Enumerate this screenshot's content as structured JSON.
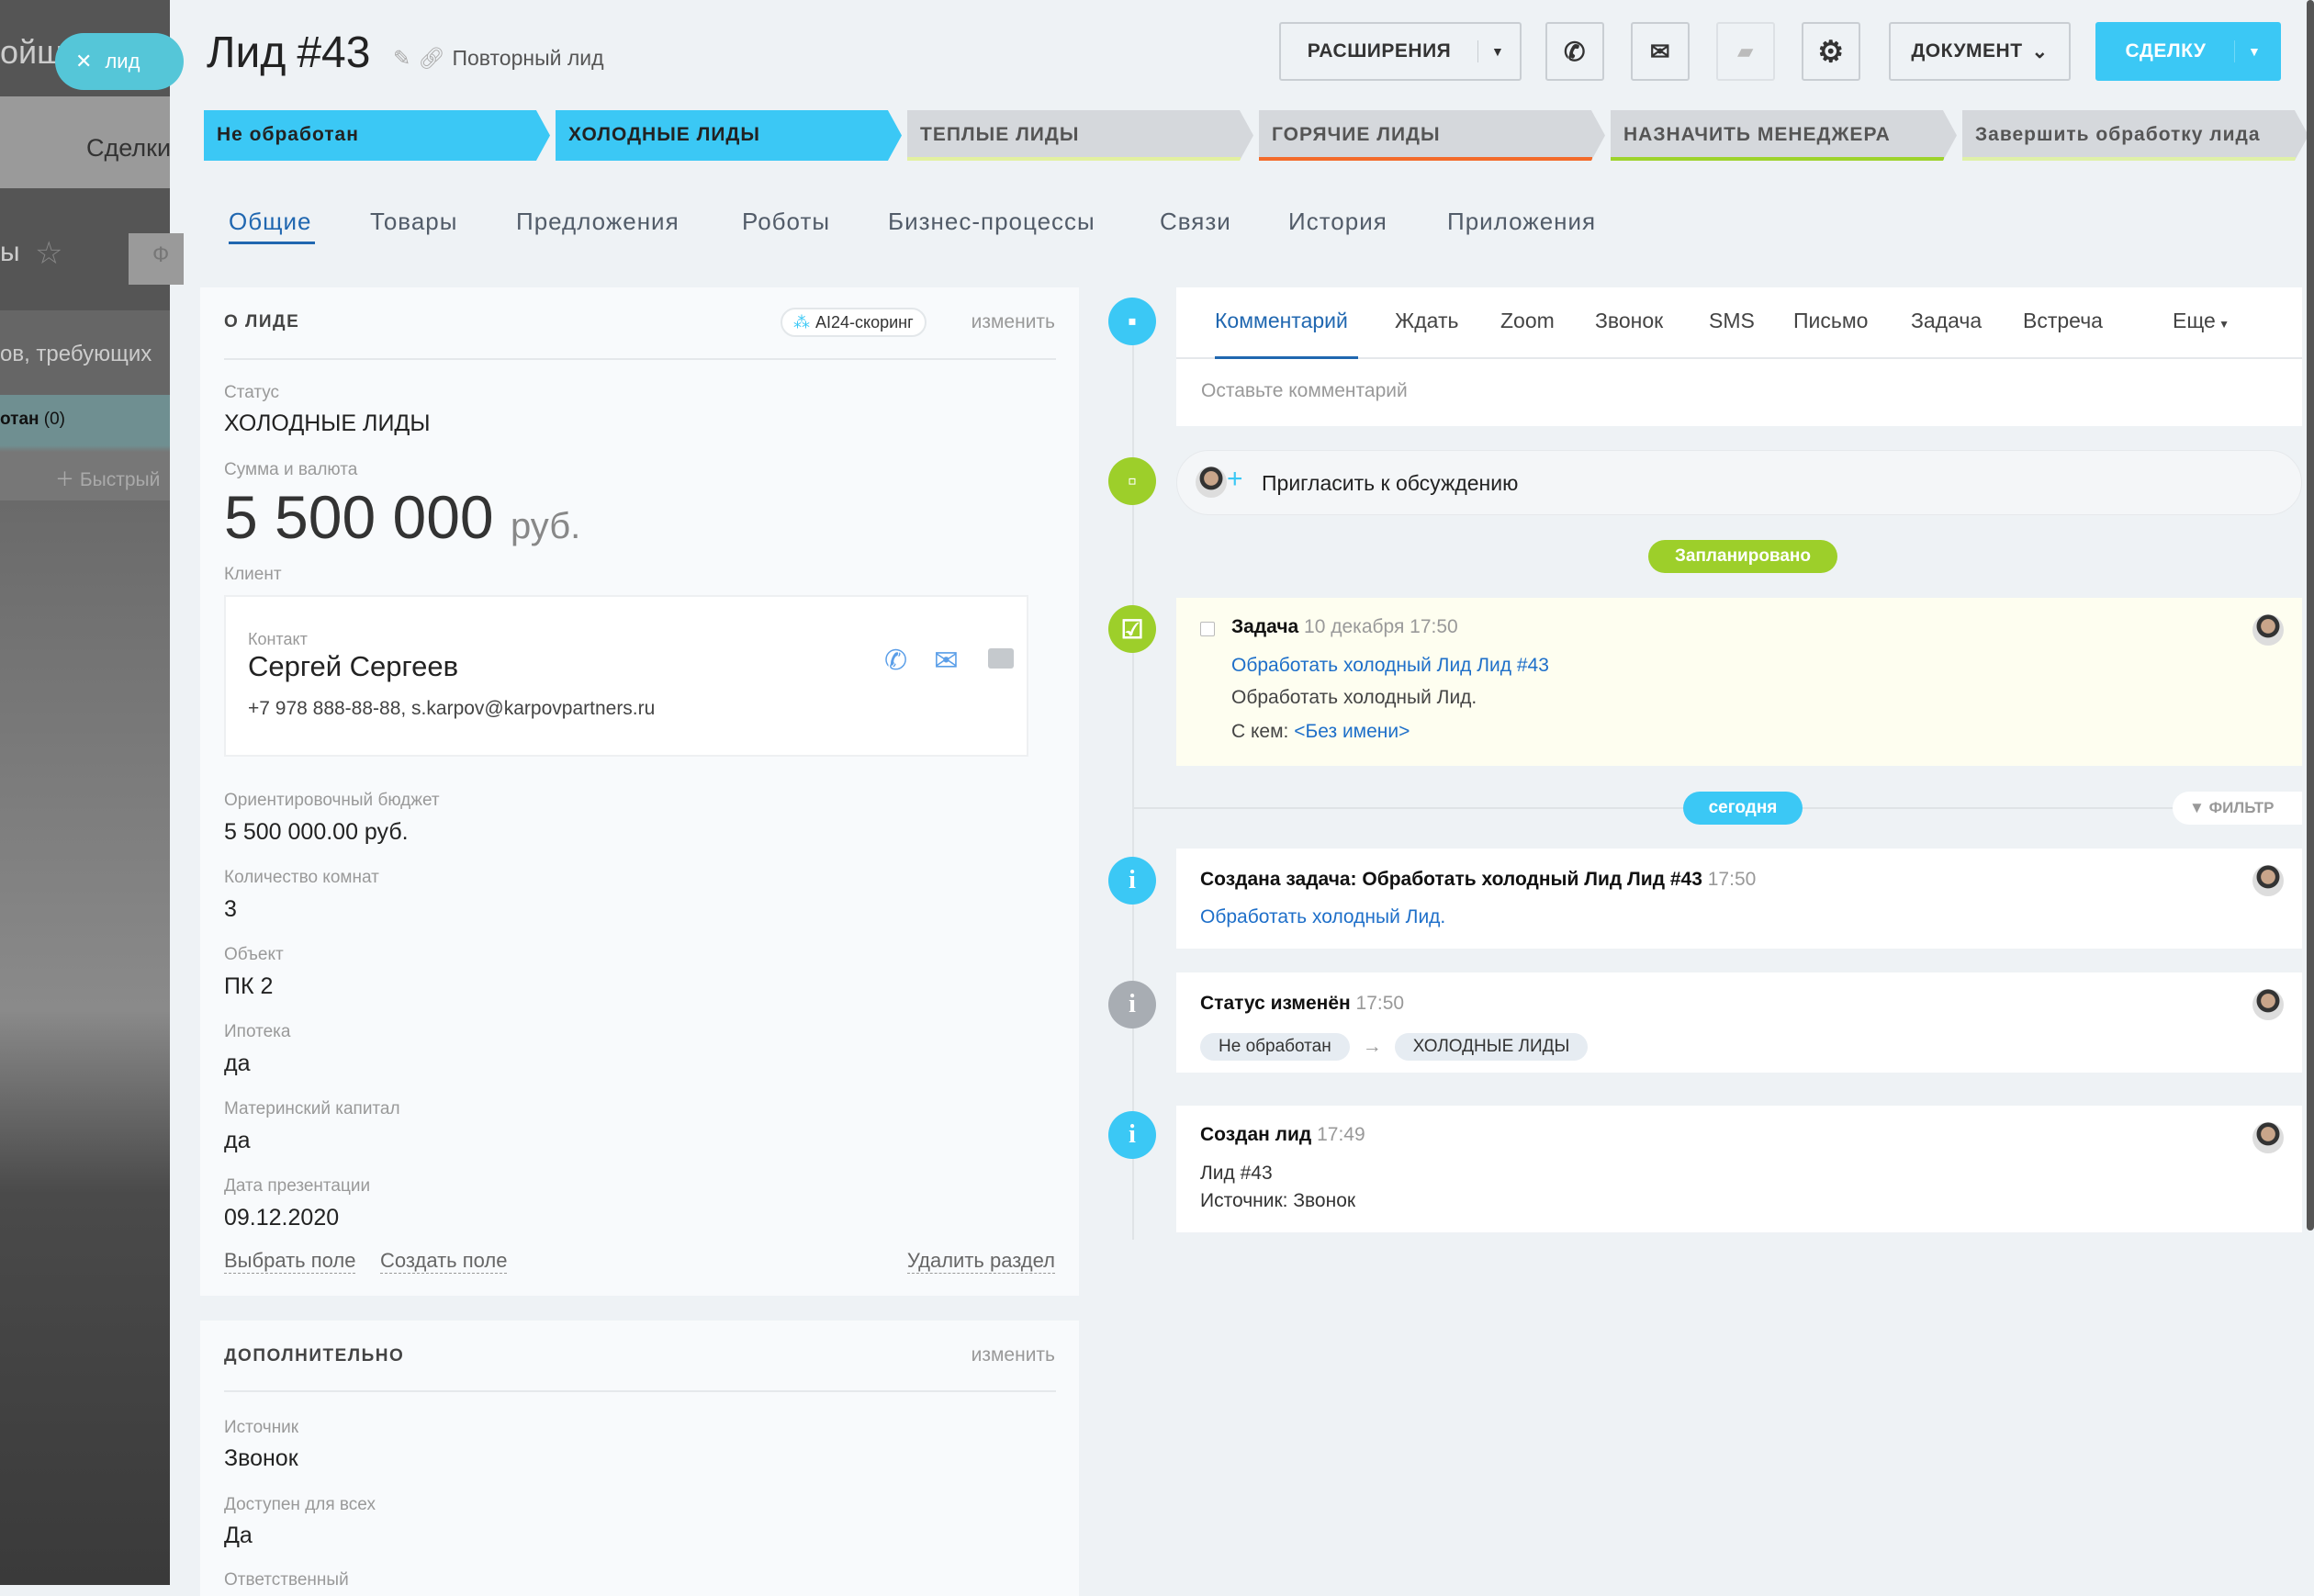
{
  "bg": {
    "text1": "ойщ",
    "text2": "Сделки",
    "text3": "ы",
    "text4": "ов, требующих",
    "text5": "отан",
    "text5count": "(0)",
    "text6": "Быстрый",
    "text7": "Ф"
  },
  "slider": {
    "close_label": "лид"
  },
  "header": {
    "title": "Лид",
    "number": "#43",
    "subtitle": "Повторный лид"
  },
  "toolbar": {
    "extensions": "РАСШИРЕНИЯ",
    "document": "ДОКУМЕНТ",
    "deal": "СДЕЛКУ",
    "accent": "#3bc8f5"
  },
  "stages": [
    {
      "label": "Не обработан",
      "active": true,
      "color": "#3bc8f5"
    },
    {
      "label": "ХОЛОДНЫЕ ЛИДЫ",
      "active": true,
      "color": "#3bc8f5"
    },
    {
      "label": "ТЕПЛЫЕ ЛИДЫ",
      "active": false,
      "color": "#e2f0a0"
    },
    {
      "label": "ГОРЯЧИЕ ЛИДЫ",
      "active": false,
      "color": "#f36b2a"
    },
    {
      "label": "НАЗНАЧИТЬ МЕНЕДЖЕРА",
      "active": false,
      "color": "#9dd32b"
    },
    {
      "label": "Завершить обработку лида",
      "active": false,
      "color": "#dff0a8"
    }
  ],
  "tabs": [
    "Общие",
    "Товары",
    "Предложения",
    "Роботы",
    "Бизнес-процессы",
    "Связи",
    "История",
    "Приложения"
  ],
  "about": {
    "title": "О ЛИДЕ",
    "scoring": "AI24-скоринг",
    "edit": "изменить",
    "status_label": "Статус",
    "status": "ХОЛОДНЫЕ ЛИДЫ",
    "sum_label": "Сумма и валюта",
    "sum": "5 500 000",
    "currency": "руб.",
    "client_label": "Клиент",
    "contact_label": "Контакт",
    "contact_name": "Сергей Сергеев",
    "contact_info": "+7 978 888-88-88, s.karpov@karpovpartners.ru",
    "fields": [
      {
        "label": "Ориентировочный бюджет",
        "value": "5 500 000.00 руб."
      },
      {
        "label": "Количество комнат",
        "value": "3"
      },
      {
        "label": "Объект",
        "value": "ПК 2"
      },
      {
        "label": "Ипотека",
        "value": "да"
      },
      {
        "label": "Материнский капитал",
        "value": "да"
      },
      {
        "label": "Дата презентации",
        "value": "09.12.2020"
      }
    ],
    "select_field": "Выбрать поле",
    "create_field": "Создать поле",
    "delete_section": "Удалить раздел"
  },
  "extra": {
    "title": "ДОПОЛНИТЕЛЬНО",
    "edit": "изменить",
    "fields": [
      {
        "label": "Источник",
        "value": "Звонок"
      },
      {
        "label": "Доступен для всех",
        "value": "Да"
      },
      {
        "label": "Ответственный",
        "value": ""
      }
    ]
  },
  "timeline": {
    "tabs": [
      "Комментарий",
      "Ждать",
      "Zoom",
      "Звонок",
      "SMS",
      "Письмо",
      "Задача",
      "Встреча",
      "Еще"
    ],
    "comment_placeholder": "Оставьте комментарий",
    "invite": "Пригласить к обсуждению",
    "planned": "Запланировано",
    "task": {
      "title": "Задача",
      "date": "10 декабря 17:50",
      "link": "Обработать холодный Лид Лид #43",
      "desc": "Обработать холодный Лид.",
      "with_label": "С кем:",
      "with": "<Без имени>"
    },
    "today": "сегодня",
    "filter": "ФИЛЬТР",
    "events": [
      {
        "title": "Создана задача: Обработать холодный Лид Лид #43",
        "time": "17:50",
        "line1": "Обработать холодный Лид."
      },
      {
        "title": "Статус изменён",
        "time": "17:50",
        "from": "Не обработан",
        "to": "ХОЛОДНЫЕ ЛИДЫ"
      },
      {
        "title": "Создан лид",
        "time": "17:49",
        "line1": "Лид #43",
        "line2": "Источник: Звонок"
      }
    ]
  }
}
